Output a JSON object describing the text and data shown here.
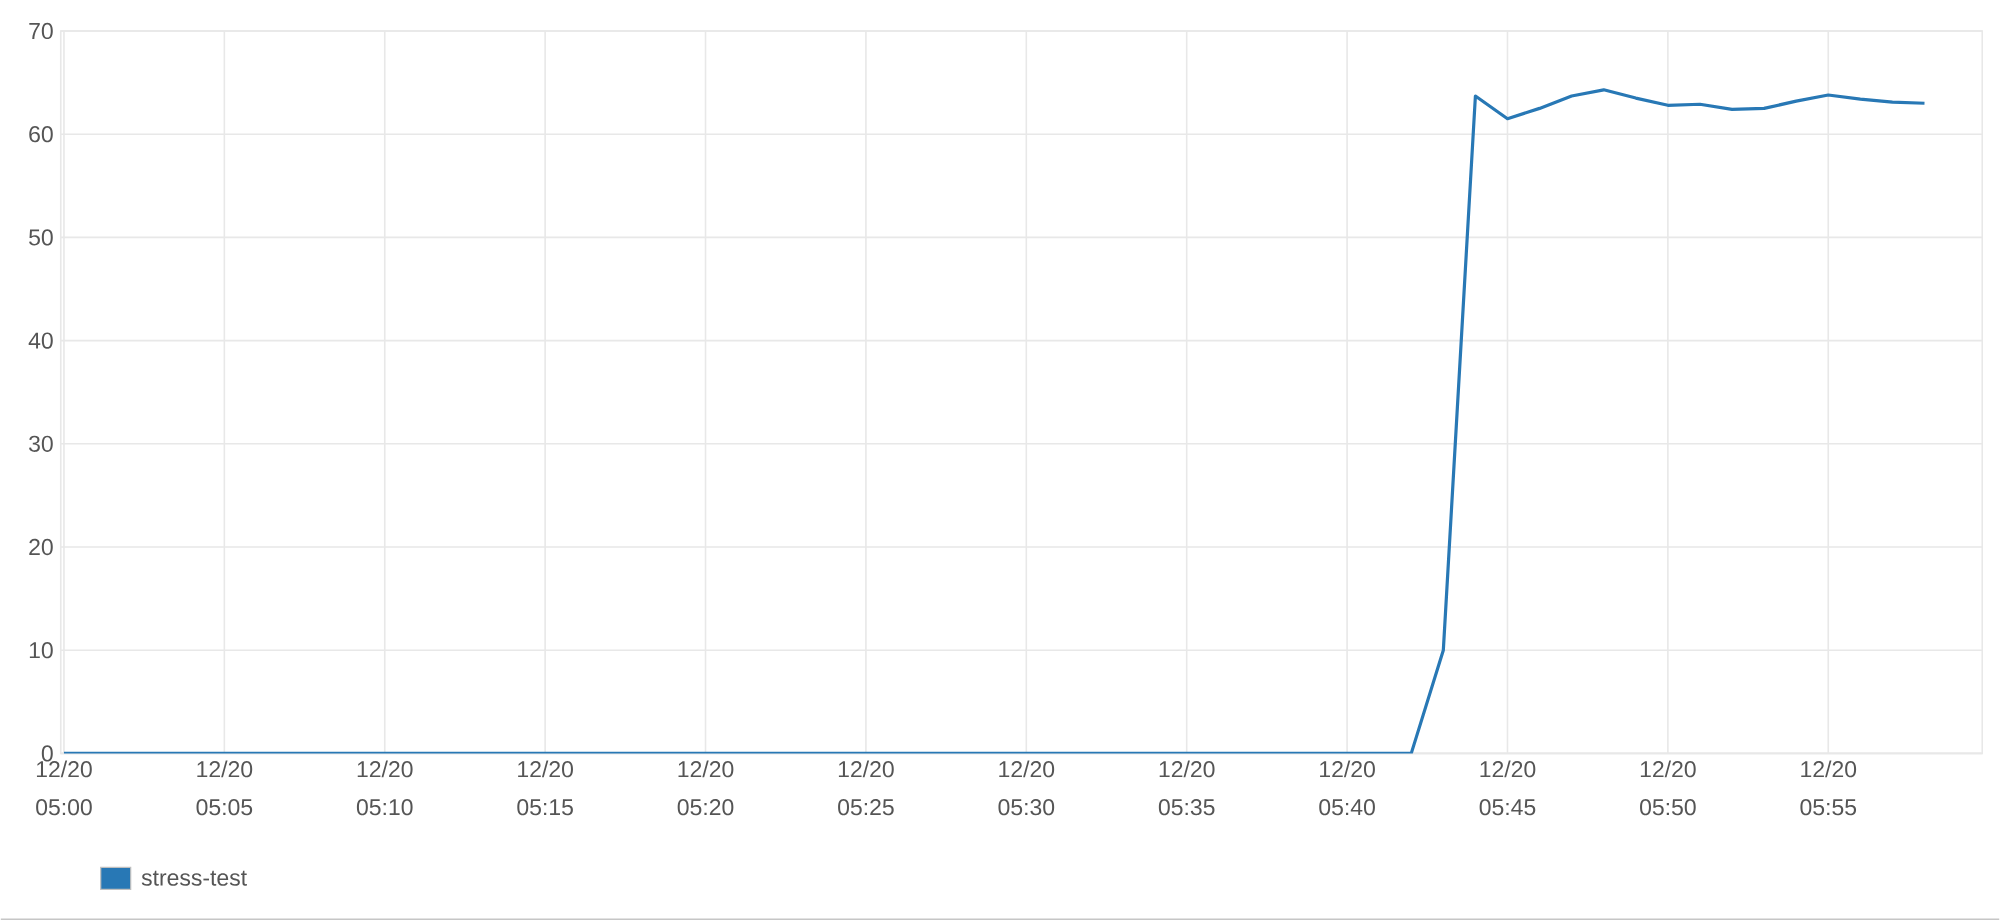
{
  "chart_data": {
    "type": "line",
    "categories": [
      "12/20 05:00",
      null,
      null,
      null,
      null,
      "12/20 05:05",
      null,
      null,
      null,
      null,
      "12/20 05:10",
      null,
      null,
      null,
      null,
      "12/20 05:15",
      null,
      null,
      null,
      null,
      "12/20 05:20",
      null,
      null,
      null,
      null,
      "12/20 05:25",
      null,
      null,
      null,
      null,
      "12/20 05:30",
      null,
      null,
      null,
      null,
      "12/20 05:35",
      null,
      null,
      null,
      null,
      "12/20 05:40",
      null,
      null,
      null,
      null,
      "12/20 05:45",
      null,
      null,
      null,
      null,
      "12/20 05:50",
      null,
      null,
      null,
      null,
      "12/20 05:55",
      null,
      null,
      null
    ],
    "series": [
      {
        "name": "stress-test",
        "color": "#2878b5",
        "values": [
          0,
          0,
          0,
          0,
          0,
          0,
          0,
          0,
          0,
          0,
          0,
          0,
          0,
          0,
          0,
          0,
          0,
          0,
          0,
          0,
          0,
          0,
          0,
          0,
          0,
          0,
          0,
          0,
          0,
          0,
          0,
          0,
          0,
          0,
          0,
          0,
          0,
          0,
          0,
          0,
          0,
          0,
          0,
          10,
          63.7,
          61.5,
          62.5,
          63.7,
          64.3,
          63.5,
          62.8,
          62.9,
          62.4,
          62.5,
          63.2,
          63.8,
          63.4,
          63.1,
          63.0
        ]
      }
    ],
    "ylim": [
      0,
      70
    ],
    "yticks": [
      0,
      10,
      20,
      30,
      40,
      50,
      60,
      70
    ],
    "grid": true,
    "legend": "bottom left",
    "marker": "none",
    "line_style": "solid"
  }
}
